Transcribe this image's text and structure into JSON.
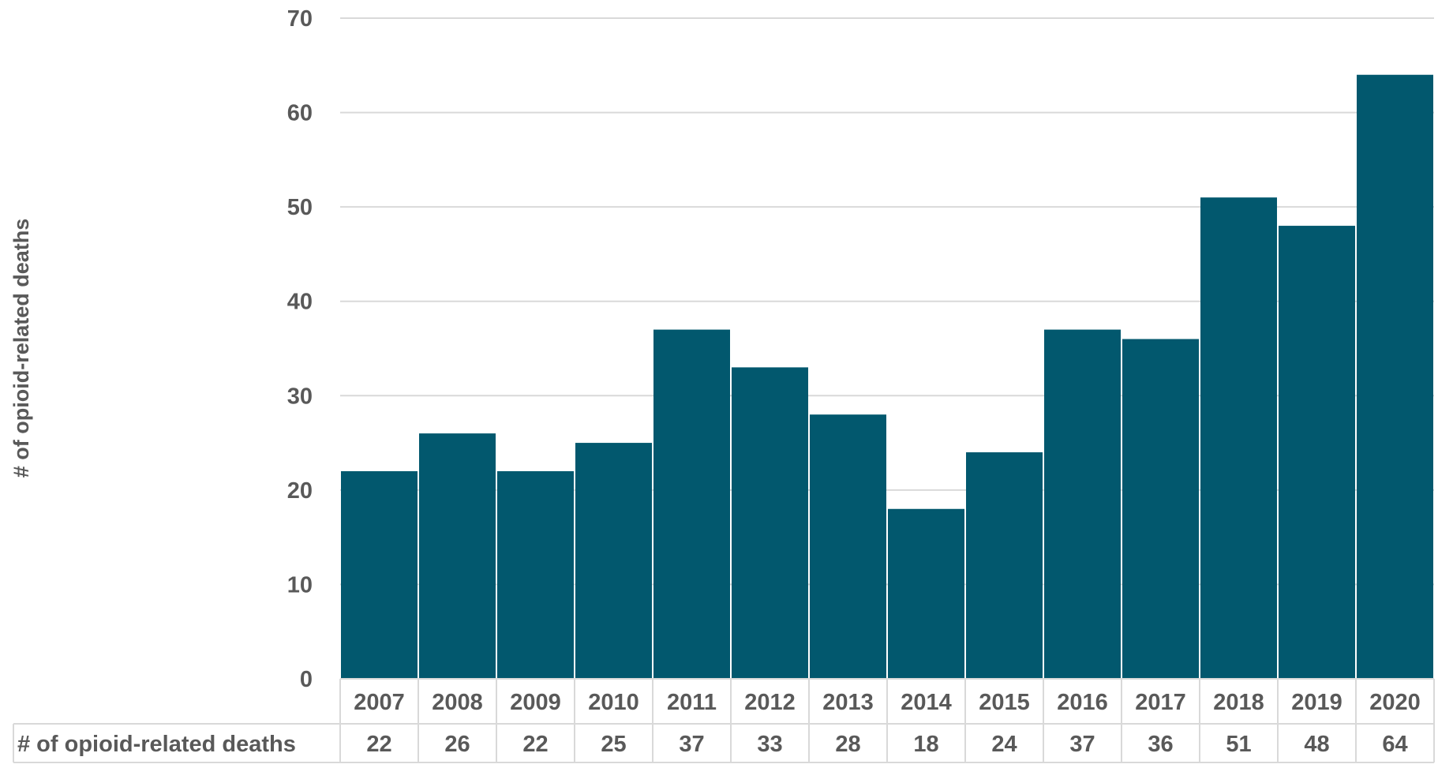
{
  "chart_data": {
    "type": "bar",
    "title": "",
    "xlabel": "",
    "ylabel": "# of opioid-related deaths",
    "ylim": [
      0,
      70
    ],
    "yticks": [
      0,
      10,
      20,
      30,
      40,
      50,
      60,
      70
    ],
    "grid": true,
    "legend": "none",
    "categories": [
      "2007",
      "2008",
      "2009",
      "2010",
      "2011",
      "2012",
      "2013",
      "2014",
      "2015",
      "2016",
      "2017",
      "2018",
      "2019",
      "2020"
    ],
    "series": [
      {
        "name": "# of opioid-related deaths",
        "color": "#02586E",
        "values": [
          22,
          26,
          22,
          25,
          37,
          33,
          28,
          18,
          24,
          37,
          36,
          51,
          48,
          64
        ]
      }
    ],
    "data_table": {
      "row_label": "# of opioid-related deaths",
      "values": [
        "22",
        "26",
        "22",
        "25",
        "37",
        "33",
        "28",
        "18",
        "24",
        "37",
        "36",
        "51",
        "48",
        "64"
      ]
    }
  },
  "colors": {
    "bar": "#02586E",
    "gridline": "#d9d9d9",
    "text": "#595959"
  }
}
